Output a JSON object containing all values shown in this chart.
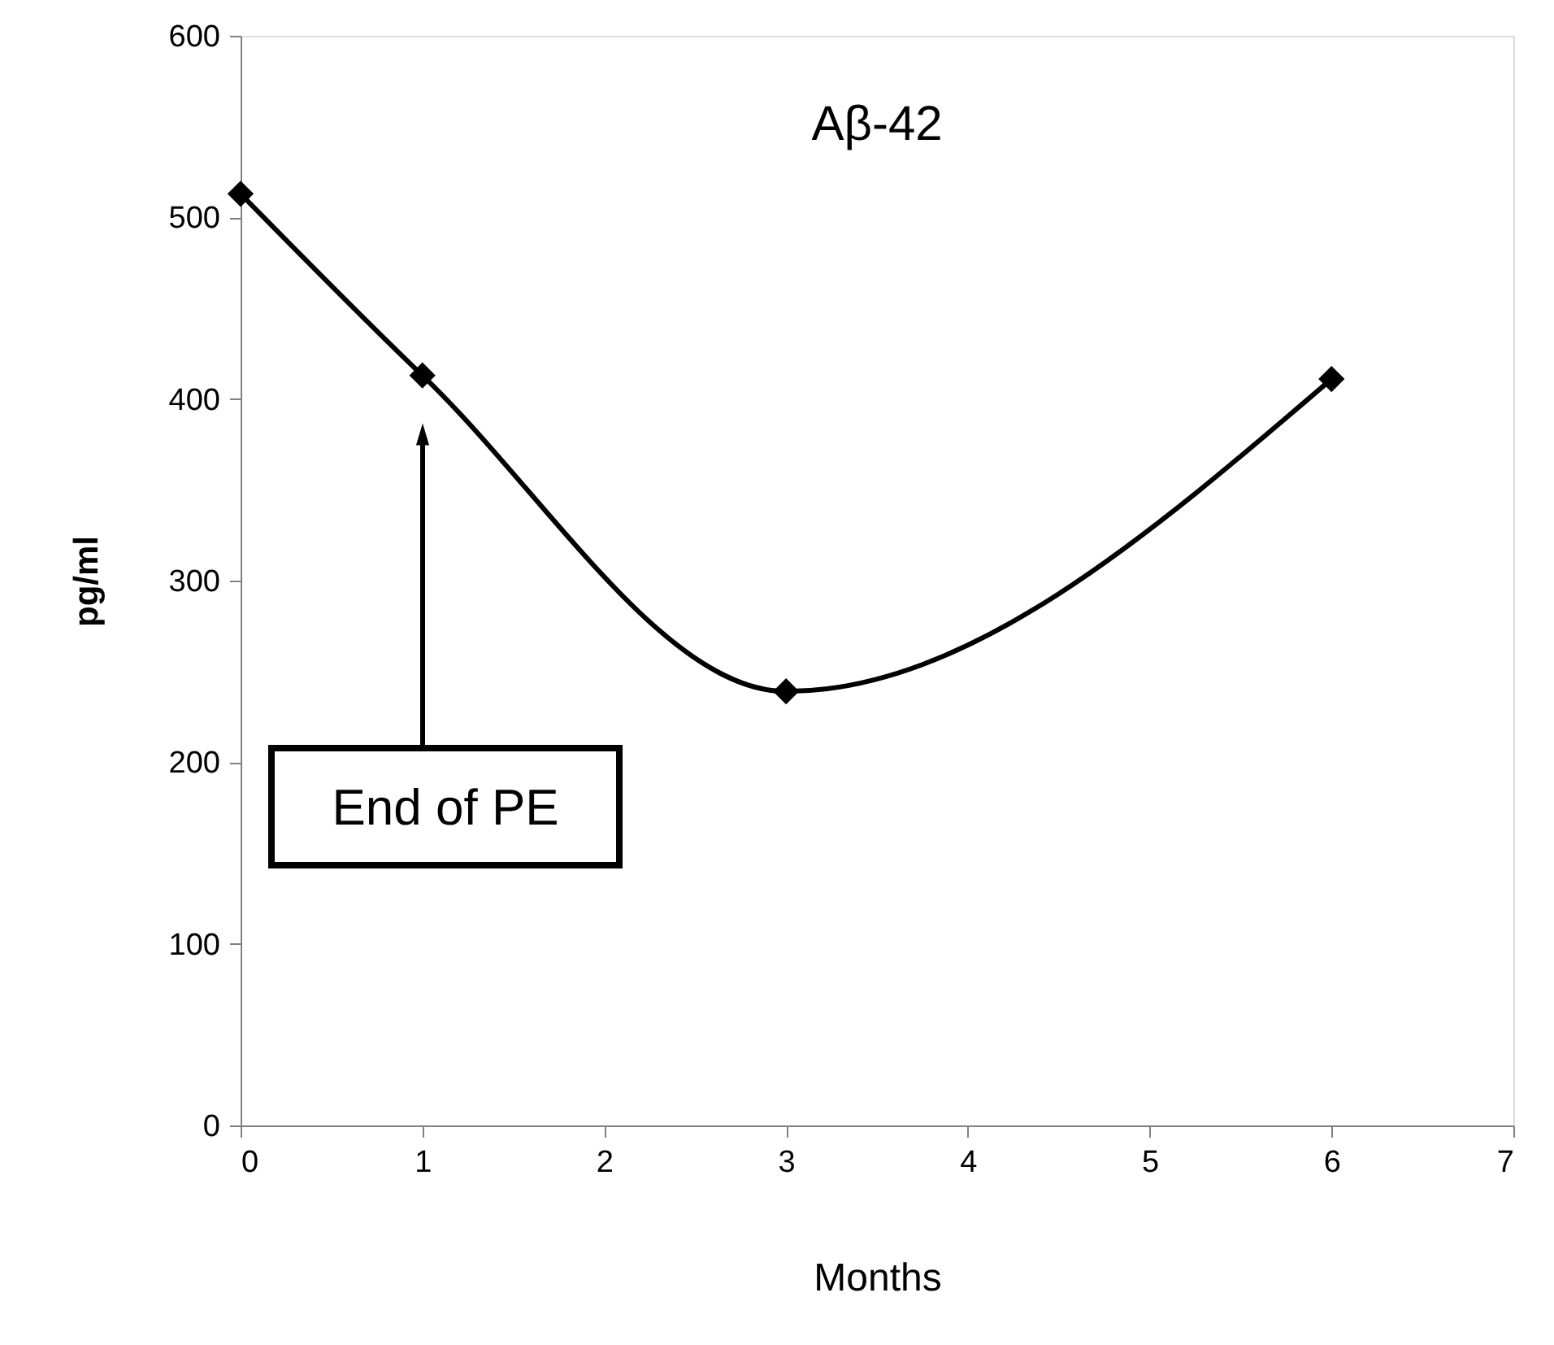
{
  "chart_data": {
    "type": "line",
    "title": "Aβ-42",
    "xlabel": "Months",
    "ylabel": "pg/ml",
    "x": [
      0,
      1,
      3,
      6
    ],
    "series": [
      {
        "color": "#000000",
        "values": [
          513,
          413,
          239,
          411
        ]
      }
    ],
    "xlim": [
      0,
      7
    ],
    "xticks": [
      0,
      1,
      2,
      3,
      4,
      5,
      6,
      7
    ],
    "ylim": [
      0,
      600
    ],
    "yticks": [
      0,
      100,
      200,
      300,
      400,
      500,
      600
    ],
    "marker": "diamond",
    "line_style": "solid",
    "grid": false,
    "annotations": [
      "End of PE"
    ]
  }
}
